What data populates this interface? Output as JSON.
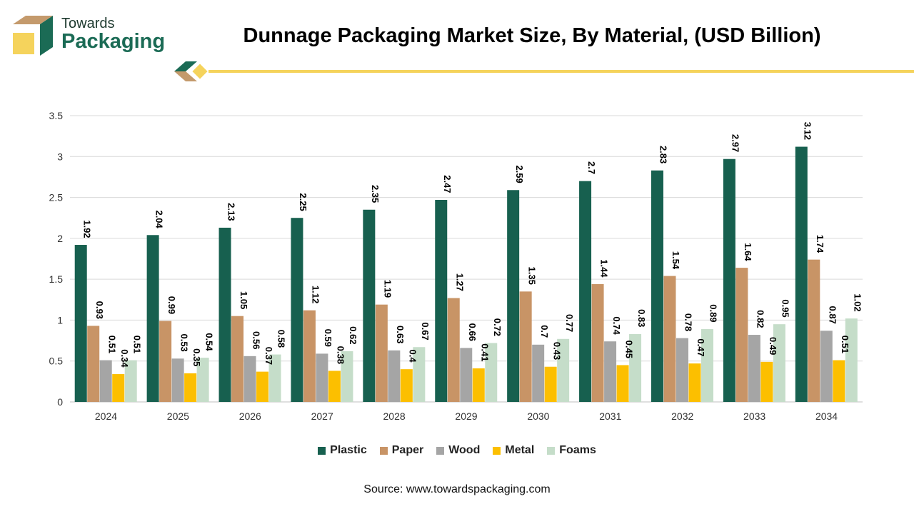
{
  "header": {
    "brand_line1": "Towards",
    "brand_line2": "Packaging",
    "title": "Dunnage Packaging Market Size, By Material, (USD Billion)"
  },
  "colors": {
    "accent_yellow": "#f5d35c",
    "logo_green": "#1b6b55",
    "logo_tan": "#c49a6c"
  },
  "chart_data": {
    "type": "bar",
    "title": "Dunnage Packaging Market Size, By Material, (USD Billion)",
    "xlabel": "",
    "ylabel": "",
    "ylim": [
      0,
      3.5
    ],
    "yticks": [
      "0",
      "0.5",
      "1",
      "1.5",
      "2",
      "2.5",
      "3",
      "3.5"
    ],
    "grid": true,
    "legend_position": "bottom",
    "categories": [
      "2024",
      "2025",
      "2026",
      "2027",
      "2028",
      "2029",
      "2030",
      "2031",
      "2032",
      "2033",
      "2034"
    ],
    "series": [
      {
        "name": "Plastic",
        "color": "#17604f",
        "values": [
          1.92,
          2.04,
          2.13,
          2.25,
          2.35,
          2.47,
          2.59,
          2.7,
          2.83,
          2.97,
          3.12
        ]
      },
      {
        "name": "Paper",
        "color": "#c89466",
        "values": [
          0.93,
          0.99,
          1.05,
          1.12,
          1.19,
          1.27,
          1.35,
          1.44,
          1.54,
          1.64,
          1.74
        ]
      },
      {
        "name": "Wood",
        "color": "#a5a5a5",
        "values": [
          0.51,
          0.53,
          0.56,
          0.59,
          0.63,
          0.66,
          0.7,
          0.74,
          0.78,
          0.82,
          0.87
        ]
      },
      {
        "name": "Metal",
        "color": "#fcbf00",
        "values": [
          0.34,
          0.35,
          0.37,
          0.38,
          0.4,
          0.41,
          0.43,
          0.45,
          0.47,
          0.49,
          0.51
        ]
      },
      {
        "name": "Foams",
        "color": "#c5ddc9",
        "values": [
          0.51,
          0.54,
          0.58,
          0.62,
          0.67,
          0.72,
          0.77,
          0.83,
          0.89,
          0.95,
          1.02
        ]
      }
    ]
  },
  "legend": {
    "items": [
      {
        "label": "Plastic",
        "color": "#17604f"
      },
      {
        "label": "Paper",
        "color": "#c89466"
      },
      {
        "label": "Wood",
        "color": "#a5a5a5"
      },
      {
        "label": "Metal",
        "color": "#fcbf00"
      },
      {
        "label": "Foams",
        "color": "#c5ddc9"
      }
    ]
  },
  "footer": {
    "source": "Source: www.towardspackaging.com"
  }
}
